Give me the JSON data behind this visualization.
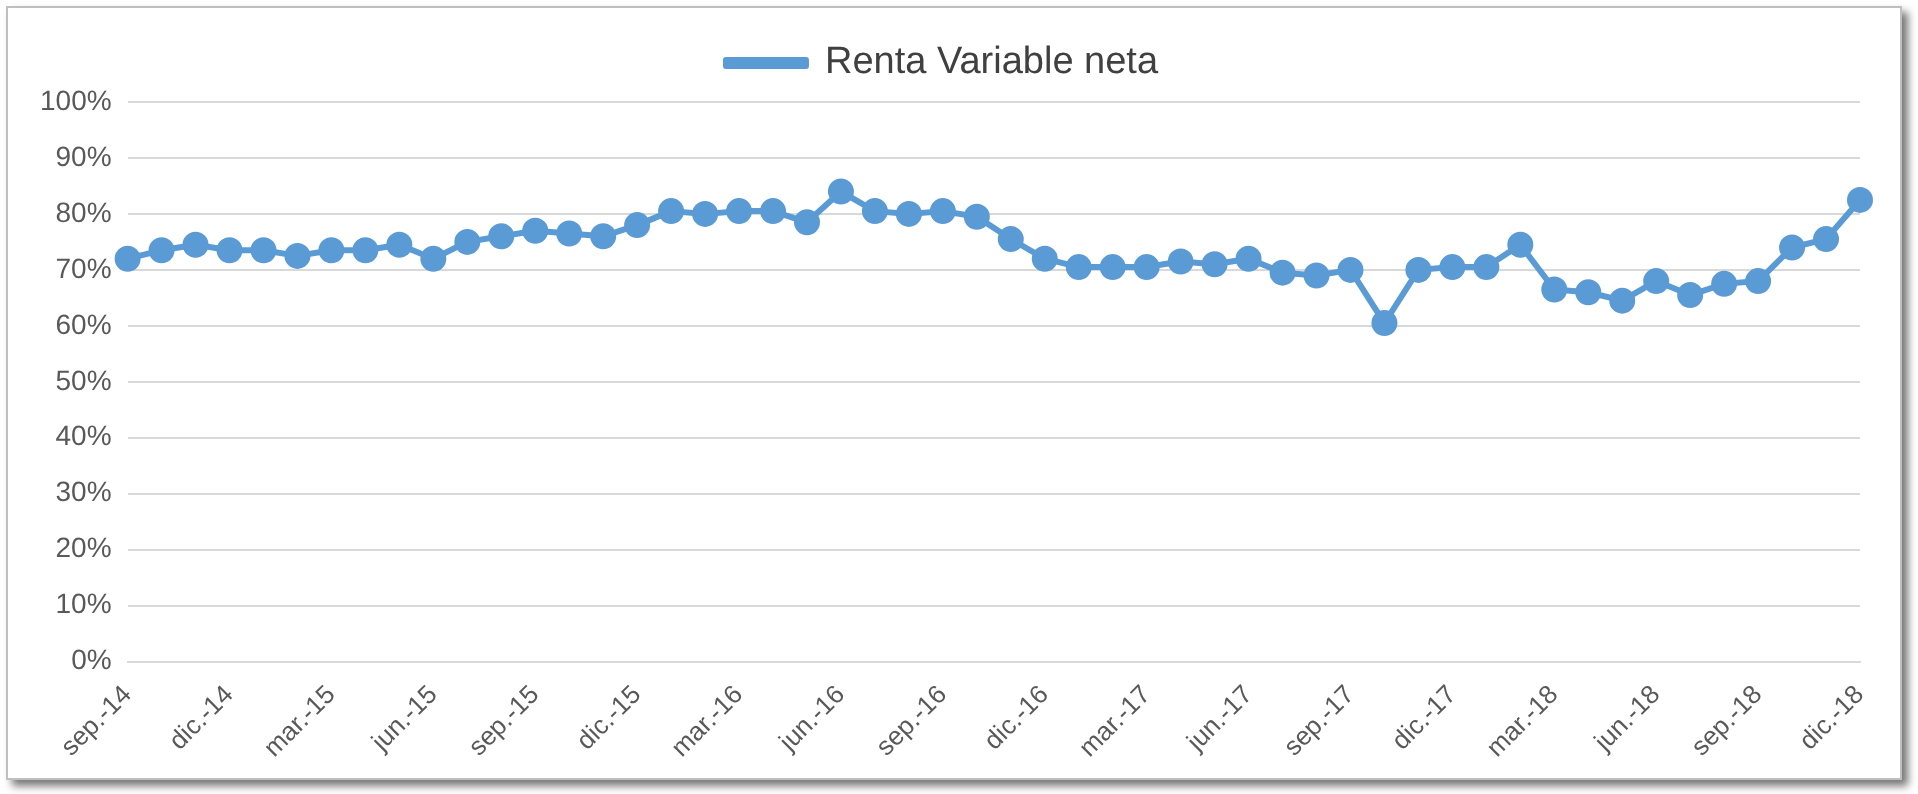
{
  "chart_data": {
    "type": "line",
    "categories": [
      "sep.-14",
      null,
      null,
      "dic.-14",
      null,
      null,
      "mar.-15",
      null,
      null,
      "jun.-15",
      null,
      null,
      "sep.-15",
      null,
      null,
      "dic.-15",
      null,
      null,
      "mar.-16",
      null,
      null,
      "jun.-16",
      null,
      null,
      "sep.-16",
      null,
      null,
      "dic.-16",
      null,
      null,
      "mar.-17",
      null,
      null,
      "jun.-17",
      null,
      null,
      "sep.-17",
      null,
      null,
      "dic.-17",
      null,
      null,
      "mar.-18",
      null,
      null,
      "jun.-18",
      null,
      null,
      "sep.-18",
      null,
      null,
      "dic.-18"
    ],
    "series": [
      {
        "name": "Renta Variable neta",
        "color": "#5b9bd5",
        "values": [
          72,
          73.5,
          74.5,
          73.5,
          73.5,
          72.5,
          73.5,
          73.5,
          74.5,
          72,
          75,
          76,
          77,
          76.5,
          76,
          78,
          80.5,
          80,
          80.5,
          80.5,
          78.5,
          84,
          80.5,
          80,
          80.5,
          79.5,
          75.5,
          72,
          70.5,
          70.5,
          70.5,
          71.5,
          71,
          72,
          69.5,
          69,
          70,
          60.5,
          70,
          70.5,
          70.5,
          74.5,
          66.5,
          66,
          64.5,
          68,
          65.5,
          67.5,
          68,
          74,
          75.5,
          82.5
        ]
      }
    ],
    "ylim": [
      0,
      100
    ],
    "yticks": [
      {
        "value": 0,
        "label": "0%"
      },
      {
        "value": 10,
        "label": "10%"
      },
      {
        "value": 20,
        "label": "20%"
      },
      {
        "value": 30,
        "label": "30%"
      },
      {
        "value": 40,
        "label": "40%"
      },
      {
        "value": 50,
        "label": "50%"
      },
      {
        "value": 60,
        "label": "60%"
      },
      {
        "value": 70,
        "label": "70%"
      },
      {
        "value": 80,
        "label": "80%"
      },
      {
        "value": 90,
        "label": "90%"
      },
      {
        "value": 100,
        "label": "100%"
      }
    ],
    "grid": "y",
    "legend": "top",
    "marker": "circle",
    "line_style": "solid"
  }
}
